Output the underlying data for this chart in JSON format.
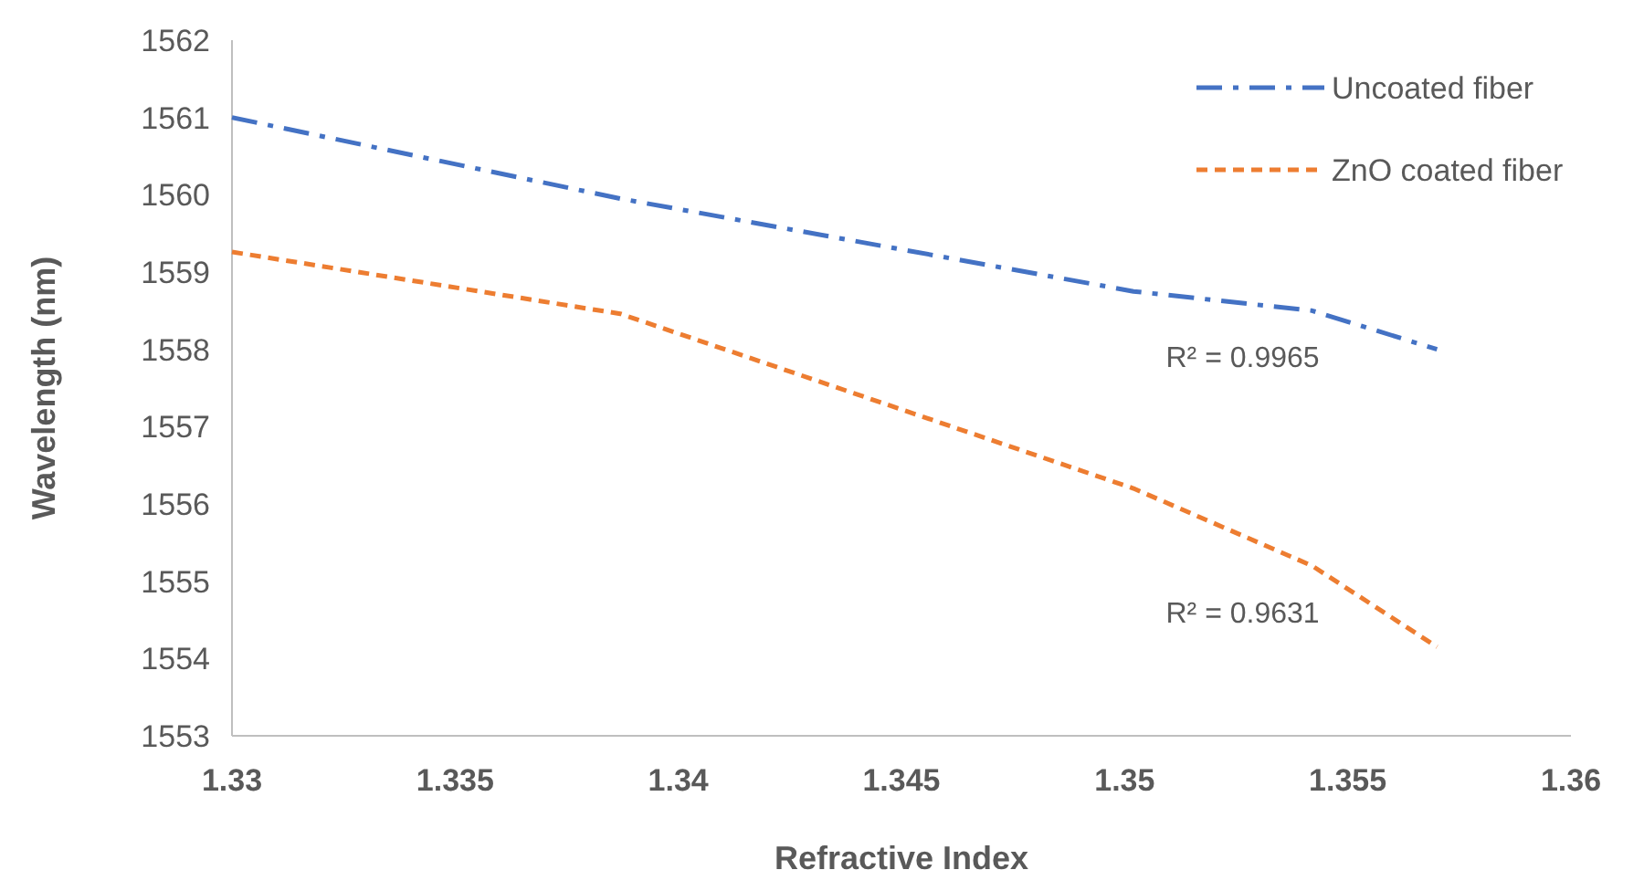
{
  "chart_data": {
    "type": "line",
    "xlabel": "Refractive Index",
    "ylabel": "Wavelength (nm)",
    "x": [
      1.33,
      1.3387,
      1.3502,
      1.3542,
      1.357
    ],
    "series": [
      {
        "name": "Uncoated fiber",
        "color": "#4472c4",
        "line_style": "dashdot",
        "values": [
          1561.0,
          1559.95,
          1558.75,
          1558.5,
          1558.0
        ]
      },
      {
        "name": "ZnO coated fiber",
        "color": "#ed7d31",
        "line_style": "dashed",
        "values": [
          1559.26,
          1558.46,
          1556.2,
          1555.2,
          1554.15
        ]
      }
    ],
    "xlim": [
      1.33,
      1.36
    ],
    "xticks": [
      {
        "value": 1.33,
        "label": "1.33"
      },
      1.335,
      {
        "value": 1.34,
        "label": "1.34"
      },
      1.345,
      {
        "value": 1.35,
        "label": "1.35"
      },
      1.355,
      {
        "value": 1.36,
        "label": "1.36"
      }
    ],
    "ylim": [
      1553,
      1562
    ],
    "yticks": [
      1553,
      1554,
      1555,
      1556,
      1557,
      1558,
      1559,
      1560,
      1561,
      1562
    ],
    "legend": "top right",
    "grid": false,
    "marker": "none",
    "annotations": [
      "R² = 0.9965",
      "R² = 0.9631"
    ]
  }
}
